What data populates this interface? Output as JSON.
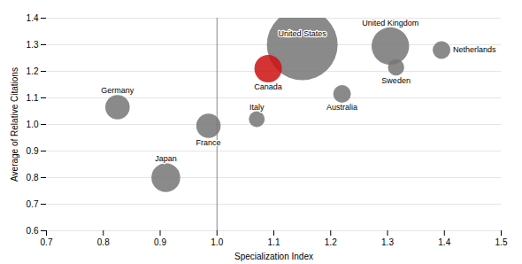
{
  "chart_data": {
    "type": "scatter",
    "xlabel": "Specialization Index",
    "ylabel": "Average of Relative Citations",
    "labels": [
      "United States",
      "Canada",
      "United Kingdom",
      "Netherlands",
      "Sweden",
      "Australia",
      "Germany",
      "France",
      "Italy",
      "Japan"
    ],
    "x": [
      1.15,
      1.09,
      1.305,
      1.395,
      1.315,
      1.22,
      0.825,
      0.985,
      1.07,
      0.91
    ],
    "values": [
      1.3,
      1.21,
      1.295,
      1.28,
      1.215,
      1.115,
      1.065,
      0.995,
      1.02,
      0.8
    ],
    "sizes": [
      3200,
      480,
      900,
      200,
      170,
      200,
      380,
      380,
      160,
      530
    ],
    "colors": [
      "#757575",
      "#cc1111",
      "#757575",
      "#757575",
      "#757575",
      "#757575",
      "#757575",
      "#757575",
      "#757575",
      "#757575"
    ],
    "vline_x": 1.0,
    "xlim": [
      0.7,
      1.5
    ],
    "ylim": [
      0.6,
      1.4
    ],
    "xticks": [
      0.7,
      0.8,
      0.9,
      {
        "value": 1.0,
        "label": "1.0"
      },
      1.1,
      1.2,
      1.3,
      1.4,
      1.5
    ],
    "yticks": [
      0.6,
      0.7,
      0.8,
      0.9,
      {
        "value": 1.0,
        "label": "1.0"
      },
      1.1,
      1.2,
      1.3,
      1.4
    ],
    "grid": true
  }
}
